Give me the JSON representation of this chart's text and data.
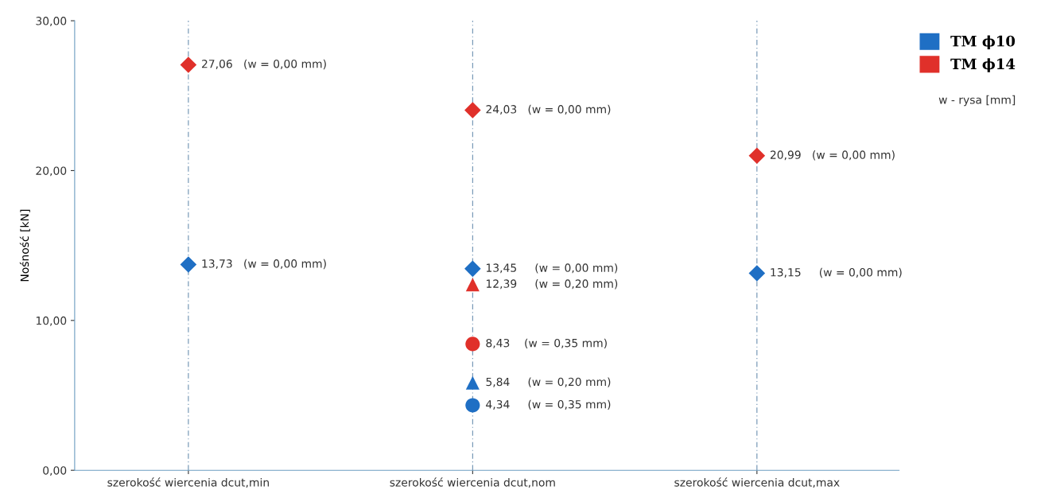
{
  "chart_data": {
    "type": "scatter",
    "ylabel": "Nośność [kN]",
    "categories": [
      "szerokość wiercenia dcut,min",
      "szerokość wiercenia dcut,nom",
      "szerokość wiercenia dcut,max"
    ],
    "series": [
      {
        "name": "TM ϕ10",
        "color": "#1f6fc4",
        "marker": "diamond",
        "values": [
          13.73,
          13.45,
          13.15
        ],
        "value_labels": [
          "13,73   (w = 0,00 mm)",
          "13,45     (w = 0,00 mm)",
          "13,15     (w = 0,00 mm)"
        ]
      },
      {
        "name": "TM ϕ14",
        "color": "#e0302a",
        "marker": "diamond",
        "values": [
          27.06,
          24.03,
          20.99
        ],
        "value_labels": [
          "27,06   (w = 0,00 mm)",
          "24,03   (w = 0,00 mm)",
          "20,99   (w = 0,00 mm)"
        ]
      },
      {
        "color": "#e0302a",
        "marker": "triangle",
        "values": [
          null,
          12.39,
          null
        ],
        "value_labels": [
          null,
          "12,39     (w = 0,20 mm)",
          null
        ]
      },
      {
        "color": "#e0302a",
        "marker": "circle",
        "values": [
          null,
          8.43,
          null
        ],
        "value_labels": [
          null,
          "8,43    (w = 0,35 mm)",
          null
        ]
      },
      {
        "color": "#1f6fc4",
        "marker": "triangle",
        "values": [
          null,
          5.84,
          null
        ],
        "value_labels": [
          null,
          "5,84     (w = 0,20 mm)",
          null
        ]
      },
      {
        "color": "#1f6fc4",
        "marker": "circle",
        "values": [
          null,
          4.34,
          null
        ],
        "value_labels": [
          null,
          "4,34     (w = 0,35 mm)",
          null
        ]
      }
    ],
    "annotations": [
      "w - rysa [mm]"
    ],
    "ylim": [
      0,
      30
    ],
    "yticks": [
      {
        "value": 0,
        "label": "0,00"
      },
      {
        "value": 10,
        "label": "10,00"
      },
      {
        "value": 20,
        "label": "20,00"
      },
      {
        "value": 30,
        "label": "30,00"
      }
    ],
    "grid": "x",
    "legend": "top right"
  }
}
